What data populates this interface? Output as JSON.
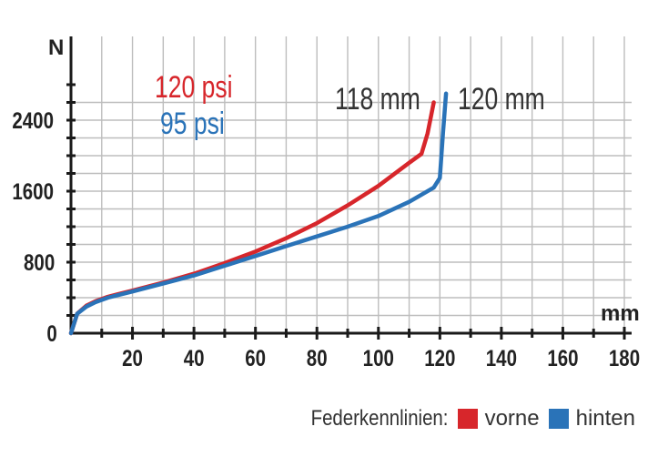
{
  "chart_data": {
    "type": "line",
    "xlabel": "mm",
    "ylabel": "N",
    "xlim": [
      0,
      180
    ],
    "ylim": [
      0,
      3000
    ],
    "xticks": [
      20,
      40,
      60,
      80,
      100,
      120,
      140,
      160,
      180
    ],
    "yticks": [
      0,
      800,
      1600,
      2400
    ],
    "grid": true,
    "series": [
      {
        "name": "vorne",
        "color": "#d7262b",
        "x": [
          0,
          2,
          5,
          8,
          12,
          20,
          30,
          40,
          50,
          60,
          70,
          80,
          90,
          100,
          110,
          114,
          116,
          118
        ],
        "y": [
          0,
          220,
          310,
          360,
          410,
          480,
          570,
          670,
          790,
          920,
          1070,
          1240,
          1440,
          1660,
          1920,
          2020,
          2250,
          2600
        ]
      },
      {
        "name": "hinten",
        "color": "#2a73b8",
        "x": [
          0,
          2,
          5,
          8,
          12,
          20,
          30,
          40,
          50,
          60,
          70,
          80,
          90,
          100,
          110,
          118,
          120,
          121,
          122
        ],
        "y": [
          0,
          220,
          300,
          350,
          400,
          470,
          560,
          650,
          760,
          870,
          980,
          1090,
          1200,
          1320,
          1480,
          1640,
          1750,
          2250,
          2700
        ]
      }
    ],
    "annotations": [
      {
        "text": "120 psi",
        "color": "#d7262b"
      },
      {
        "text": "95 psi",
        "color": "#2a73b8"
      },
      {
        "text": "118 mm",
        "color": "#333333"
      },
      {
        "text": "120 mm",
        "color": "#333333"
      }
    ],
    "legend": {
      "title": "Federkennlinien:",
      "items": [
        {
          "label": "vorne",
          "color": "#d7262b"
        },
        {
          "label": "hinten",
          "color": "#2a73b8"
        }
      ],
      "position": "bottom-right"
    }
  }
}
